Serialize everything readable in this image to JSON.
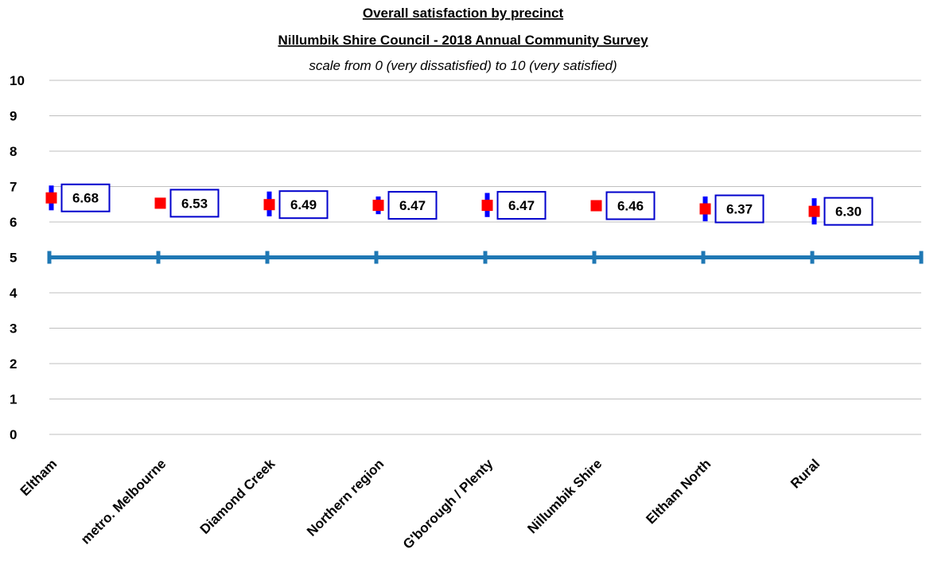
{
  "chart_data": {
    "type": "scatter",
    "title": "Overall satisfaction  by precinct",
    "subtitle_line1": "Nillumbik Shire Council - 2018 Annual Community Survey",
    "subtitle_line2": "scale from 0 (very dissatisfied) to 10 (very satisfied)",
    "xlabel": "",
    "ylabel": "",
    "ylim": [
      0,
      10
    ],
    "yticks": [
      "0",
      "1",
      "2",
      "3",
      "4",
      "5",
      "6",
      "7",
      "8",
      "9",
      "10"
    ],
    "grid": true,
    "categories": [
      "Eltham",
      "metro. Melbourne",
      "Diamond Creek",
      "Northern region",
      "G'borough / Plenty",
      "Nillumbik Shire",
      "Eltham North",
      "Rural"
    ],
    "values": [
      6.68,
      6.53,
      6.49,
      6.47,
      6.47,
      6.46,
      6.37,
      6.3
    ],
    "value_labels": [
      "6.68",
      "6.53",
      "6.49",
      "6.47",
      "6.47",
      "6.46",
      "6.37",
      "6.30"
    ],
    "error_low": [
      6.33,
      6.53,
      6.16,
      6.22,
      6.14,
      6.46,
      6.02,
      5.93
    ],
    "error_high": [
      7.03,
      6.53,
      6.86,
      6.72,
      6.82,
      6.46,
      6.72,
      6.67
    ],
    "reference_line": {
      "value": 5
    },
    "colors": {
      "marker": "#ff0000",
      "error_bar": "#0000ff",
      "reference_line": "#1f78b4",
      "label_border": "#0000cc",
      "grid": "#bfbfbf"
    }
  }
}
